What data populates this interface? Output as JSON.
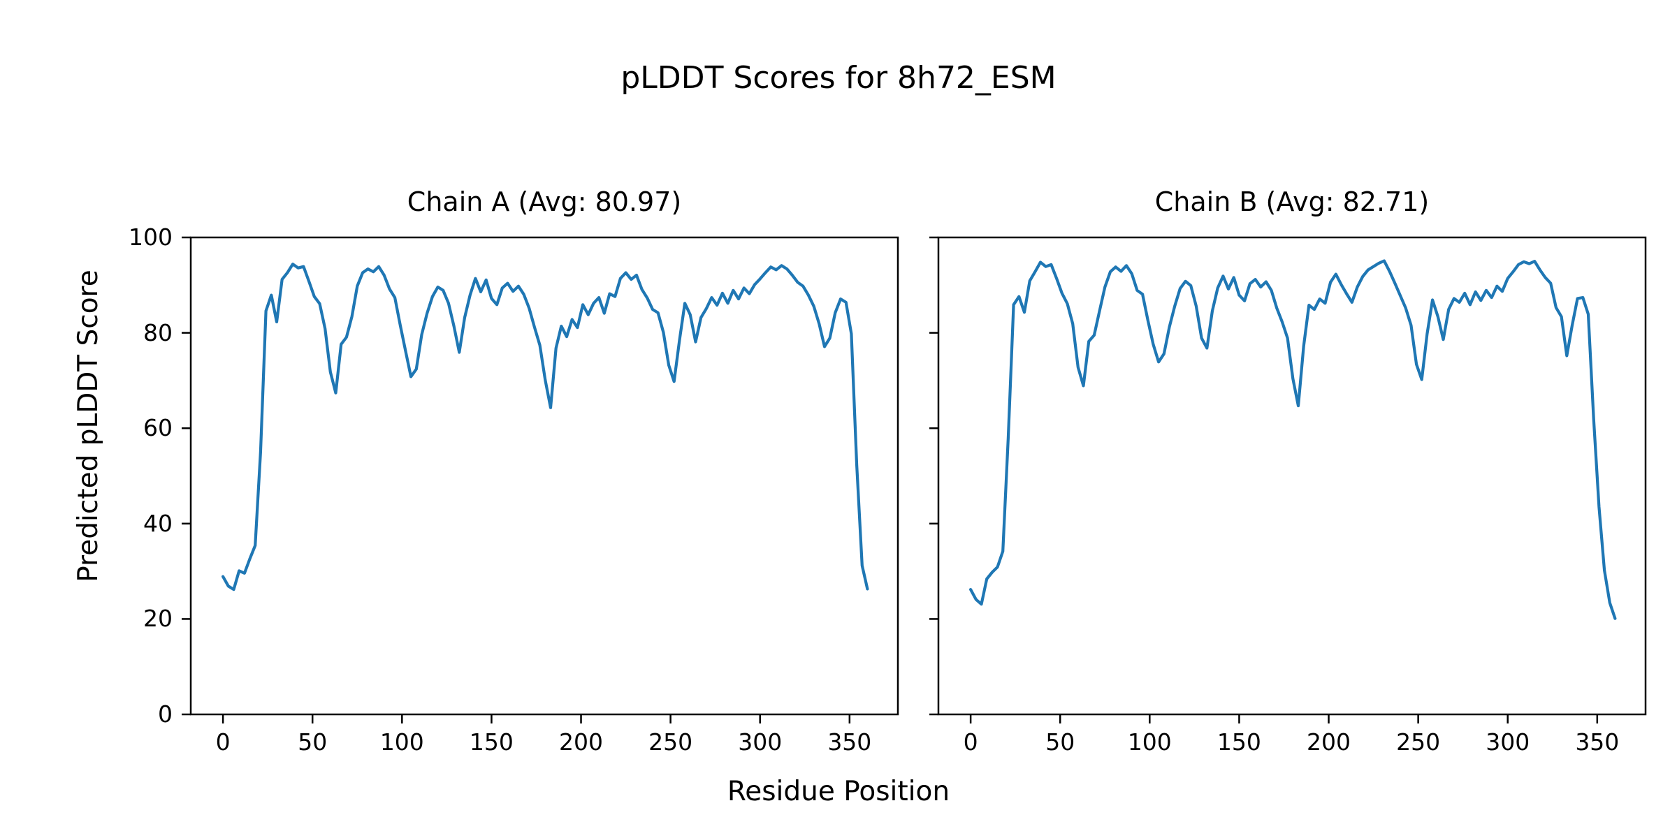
{
  "figure": {
    "suptitle": "pLDDT Scores for 8h72_ESM",
    "xlabel": "Residue Position",
    "ylabel": "Predicted pLDDT Score",
    "background_color": "#ffffff",
    "text_color": "#000000",
    "spine_color": "#000000"
  },
  "chart_data": [
    {
      "type": "line",
      "title": "Chain A (Avg: 80.97)",
      "chain": "A",
      "average_plddt": 80.97,
      "line_color": "#1f77b4",
      "xlim": [
        -18,
        377
      ],
      "ylim": [
        0,
        100
      ],
      "xticks": [
        0,
        50,
        100,
        150,
        200,
        250,
        300,
        350
      ],
      "yticks": [
        0,
        20,
        40,
        60,
        80,
        100
      ],
      "ytick_labels_visible": true,
      "grid": false,
      "legend": "none",
      "x": [
        0,
        3,
        6,
        9,
        12,
        15,
        18,
        21,
        24,
        27,
        30,
        33,
        36,
        39,
        42,
        45,
        48,
        51,
        54,
        57,
        60,
        63,
        66,
        69,
        72,
        75,
        78,
        81,
        84,
        87,
        90,
        93,
        96,
        99,
        102,
        105,
        108,
        111,
        114,
        117,
        120,
        123,
        126,
        129,
        132,
        135,
        138,
        141,
        144,
        147,
        150,
        153,
        156,
        159,
        162,
        165,
        168,
        171,
        174,
        177,
        180,
        183,
        186,
        189,
        192,
        195,
        198,
        201,
        204,
        207,
        210,
        213,
        216,
        219,
        222,
        225,
        228,
        231,
        234,
        237,
        240,
        243,
        246,
        249,
        252,
        255,
        258,
        261,
        264,
        267,
        270,
        273,
        276,
        279,
        282,
        285,
        288,
        291,
        294,
        297,
        300,
        303,
        306,
        309,
        312,
        315,
        318,
        321,
        324,
        327,
        330,
        333,
        336,
        339,
        342,
        345,
        348,
        351,
        354,
        357,
        360
      ],
      "y": [
        28.9,
        26.9,
        26.2,
        30.1,
        29.6,
        32.6,
        35.4,
        55.0,
        84.6,
        87.9,
        82.3,
        91.2,
        92.6,
        94.4,
        93.6,
        93.9,
        90.8,
        87.6,
        86.1,
        80.9,
        71.8,
        67.4,
        77.6,
        79.1,
        83.4,
        89.8,
        92.6,
        93.4,
        92.8,
        93.9,
        92.1,
        89.2,
        87.4,
        81.6,
        76.2,
        70.8,
        72.4,
        79.6,
        84.1,
        87.6,
        89.6,
        88.9,
        86.2,
        81.4,
        75.9,
        83.2,
        87.9,
        91.4,
        88.6,
        91.1,
        87.2,
        85.9,
        89.4,
        90.4,
        88.7,
        89.8,
        88.1,
        85.2,
        81.2,
        77.4,
        70.1,
        64.3,
        76.8,
        81.4,
        79.2,
        82.8,
        81.1,
        85.9,
        83.8,
        86.2,
        87.4,
        84.1,
        88.2,
        87.6,
        91.4,
        92.6,
        91.2,
        92.1,
        89.1,
        87.3,
        84.9,
        84.2,
        80.1,
        73.2,
        69.8,
        78.4,
        86.2,
        83.8,
        78.1,
        83.2,
        85.1,
        87.4,
        85.8,
        88.3,
        86.2,
        88.9,
        87.1,
        89.4,
        88.2,
        90.1,
        91.3,
        92.6,
        93.8,
        93.2,
        94.1,
        93.4,
        92.1,
        90.6,
        89.8,
        87.9,
        85.6,
        81.9,
        77.1,
        78.9,
        84.2,
        87.1,
        86.4,
        79.8,
        52.3,
        31.2,
        26.3
      ]
    },
    {
      "type": "line",
      "title": "Chain B (Avg: 82.71)",
      "chain": "B",
      "average_plddt": 82.71,
      "line_color": "#1f77b4",
      "xlim": [
        -18,
        377
      ],
      "ylim": [
        0,
        100
      ],
      "xticks": [
        0,
        50,
        100,
        150,
        200,
        250,
        300,
        350
      ],
      "yticks": [
        0,
        20,
        40,
        60,
        80,
        100
      ],
      "ytick_labels_visible": false,
      "grid": false,
      "legend": "none",
      "x": [
        0,
        3,
        6,
        9,
        12,
        15,
        18,
        21,
        24,
        27,
        30,
        33,
        36,
        39,
        42,
        45,
        48,
        51,
        54,
        57,
        60,
        63,
        66,
        69,
        72,
        75,
        78,
        81,
        84,
        87,
        90,
        93,
        96,
        99,
        102,
        105,
        108,
        111,
        114,
        117,
        120,
        123,
        126,
        129,
        132,
        135,
        138,
        141,
        144,
        147,
        150,
        153,
        156,
        159,
        162,
        165,
        168,
        171,
        174,
        177,
        180,
        183,
        186,
        189,
        192,
        195,
        198,
        201,
        204,
        207,
        210,
        213,
        216,
        219,
        222,
        225,
        228,
        231,
        234,
        237,
        240,
        243,
        246,
        249,
        252,
        255,
        258,
        261,
        264,
        267,
        270,
        273,
        276,
        279,
        282,
        285,
        288,
        291,
        294,
        297,
        300,
        303,
        306,
        309,
        312,
        315,
        318,
        321,
        324,
        327,
        330,
        333,
        336,
        339,
        342,
        345,
        348,
        351,
        354,
        357,
        360
      ],
      "y": [
        26.2,
        24.1,
        23.1,
        28.4,
        29.8,
        30.9,
        34.2,
        58.0,
        85.9,
        87.6,
        84.3,
        90.9,
        92.8,
        94.8,
        93.9,
        94.3,
        91.4,
        88.3,
        86.1,
        81.9,
        72.8,
        68.9,
        78.2,
        79.5,
        84.6,
        89.6,
        92.8,
        93.8,
        92.9,
        94.1,
        92.4,
        88.9,
        88.1,
        82.6,
        77.6,
        73.9,
        75.6,
        81.2,
        85.6,
        89.3,
        90.8,
        89.9,
        85.6,
        78.9,
        76.8,
        84.6,
        89.4,
        91.9,
        89.2,
        91.6,
        87.9,
        86.7,
        90.3,
        91.2,
        89.6,
        90.7,
        88.9,
        85.2,
        82.3,
        78.9,
        70.4,
        64.7,
        77.2,
        85.8,
        84.9,
        87.1,
        86.2,
        90.6,
        92.3,
        90.1,
        88.2,
        86.4,
        89.6,
        91.8,
        93.2,
        93.9,
        94.6,
        95.1,
        92.9,
        90.4,
        87.8,
        85.2,
        81.6,
        73.4,
        70.2,
        79.8,
        86.9,
        83.4,
        78.6,
        84.9,
        87.2,
        86.4,
        88.3,
        85.9,
        88.6,
        86.8,
        88.9,
        87.4,
        89.8,
        88.7,
        91.4,
        92.8,
        94.3,
        94.9,
        94.5,
        95.0,
        93.2,
        91.6,
        90.4,
        85.3,
        83.4,
        75.2,
        81.6,
        87.2,
        87.4,
        83.9,
        62.0,
        43.5,
        30.2,
        23.4,
        20.1
      ]
    }
  ]
}
